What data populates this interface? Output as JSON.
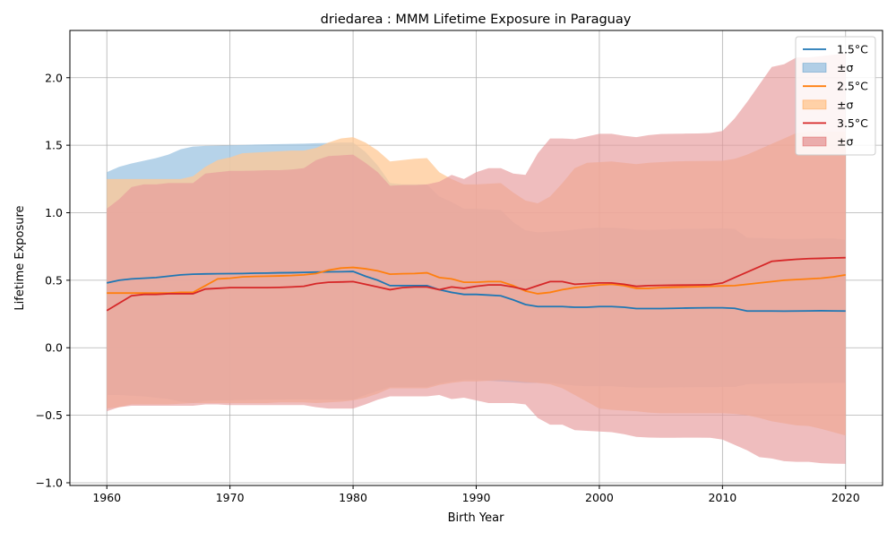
{
  "chart_data": {
    "type": "area",
    "title": "driedarea : MMM Lifetime Exposure in Paraguay",
    "xlabel": "Birth Year",
    "ylabel": "Lifetime Exposure",
    "xlim": [
      1957,
      2023
    ],
    "ylim": [
      -1.02,
      2.35
    ],
    "x_ticks": [
      1960,
      1970,
      1980,
      1990,
      2000,
      2010,
      2020
    ],
    "x_tick_labels": [
      "1960",
      "1970",
      "1980",
      "1990",
      "2000",
      "2010",
      "2020"
    ],
    "y_ticks": [
      -1.0,
      -0.5,
      0.0,
      0.5,
      1.0,
      1.5,
      2.0
    ],
    "y_tick_labels": [
      "−1.0",
      "−0.5",
      "0.0",
      "0.5",
      "1.0",
      "1.5",
      "2.0"
    ],
    "grid": true,
    "legend_position": "top-right",
    "legend_entries": [
      "1.5°C",
      "±σ",
      "2.5°C",
      "±σ",
      "3.5°C",
      "±σ"
    ],
    "x": [
      1960,
      1961,
      1962,
      1963,
      1964,
      1965,
      1966,
      1967,
      1968,
      1969,
      1970,
      1971,
      1972,
      1973,
      1974,
      1975,
      1976,
      1977,
      1978,
      1979,
      1980,
      1981,
      1982,
      1983,
      1984,
      1985,
      1986,
      1987,
      1988,
      1989,
      1990,
      1991,
      1992,
      1993,
      1994,
      1995,
      1996,
      1997,
      1998,
      1999,
      2000,
      2001,
      2002,
      2003,
      2004,
      2005,
      2006,
      2007,
      2008,
      2009,
      2010,
      2011,
      2012,
      2013,
      2014,
      2015,
      2016,
      2017,
      2018,
      2019,
      2020
    ],
    "series": [
      {
        "name": "1.5°C",
        "color": "#1f77b4",
        "band_color": "#9ec4e2",
        "mean": [
          0.48,
          0.5,
          0.51,
          0.515,
          0.52,
          0.53,
          0.54,
          0.545,
          0.547,
          0.548,
          0.549,
          0.55,
          0.552,
          0.553,
          0.555,
          0.556,
          0.558,
          0.56,
          0.562,
          0.563,
          0.565,
          0.53,
          0.5,
          0.46,
          0.46,
          0.46,
          0.46,
          0.43,
          0.41,
          0.395,
          0.395,
          0.39,
          0.385,
          0.355,
          0.32,
          0.305,
          0.305,
          0.305,
          0.3,
          0.3,
          0.305,
          0.305,
          0.3,
          0.29,
          0.29,
          0.29,
          0.292,
          0.294,
          0.295,
          0.296,
          0.296,
          0.292,
          0.272,
          0.272,
          0.272,
          0.271,
          0.272,
          0.273,
          0.274,
          0.273,
          0.272
        ],
        "upper": [
          1.3,
          1.34,
          1.365,
          1.385,
          1.405,
          1.43,
          1.47,
          1.49,
          1.495,
          1.497,
          1.499,
          1.502,
          1.505,
          1.507,
          1.508,
          1.51,
          1.512,
          1.515,
          1.517,
          1.52,
          1.52,
          1.45,
          1.35,
          1.22,
          1.21,
          1.21,
          1.21,
          1.12,
          1.08,
          1.03,
          1.03,
          1.025,
          1.02,
          0.93,
          0.87,
          0.855,
          0.86,
          0.865,
          0.875,
          0.885,
          0.89,
          0.89,
          0.885,
          0.875,
          0.873,
          0.875,
          0.878,
          0.88,
          0.88,
          0.882,
          0.884,
          0.88,
          0.815,
          0.812,
          0.81,
          0.805,
          0.806,
          0.808,
          0.81,
          0.81,
          0.8
        ],
        "lower": [
          -0.35,
          -0.35,
          -0.355,
          -0.36,
          -0.37,
          -0.38,
          -0.4,
          -0.41,
          -0.395,
          -0.39,
          -0.39,
          -0.388,
          -0.386,
          -0.385,
          -0.383,
          -0.382,
          -0.382,
          -0.383,
          -0.385,
          -0.386,
          -0.385,
          -0.35,
          -0.32,
          -0.29,
          -0.29,
          -0.29,
          -0.29,
          -0.265,
          -0.25,
          -0.24,
          -0.24,
          -0.245,
          -0.25,
          -0.255,
          -0.26,
          -0.26,
          -0.26,
          -0.27,
          -0.28,
          -0.285,
          -0.285,
          -0.285,
          -0.29,
          -0.295,
          -0.295,
          -0.295,
          -0.294,
          -0.293,
          -0.292,
          -0.291,
          -0.29,
          -0.29,
          -0.27,
          -0.268,
          -0.266,
          -0.265,
          -0.264,
          -0.263,
          -0.262,
          -0.261,
          -0.26
        ]
      },
      {
        "name": "2.5°C",
        "color": "#ff7f0e",
        "band_color": "#ffc894",
        "mean": [
          0.405,
          0.405,
          0.405,
          0.405,
          0.405,
          0.405,
          0.41,
          0.41,
          0.46,
          0.51,
          0.515,
          0.525,
          0.528,
          0.53,
          0.532,
          0.535,
          0.54,
          0.55,
          0.575,
          0.59,
          0.595,
          0.585,
          0.57,
          0.545,
          0.548,
          0.55,
          0.555,
          0.52,
          0.51,
          0.485,
          0.485,
          0.49,
          0.49,
          0.46,
          0.42,
          0.4,
          0.41,
          0.43,
          0.445,
          0.455,
          0.465,
          0.47,
          0.46,
          0.44,
          0.44,
          0.445,
          0.448,
          0.45,
          0.452,
          0.455,
          0.458,
          0.46,
          0.47,
          0.48,
          0.49,
          0.5,
          0.505,
          0.51,
          0.515,
          0.525,
          0.54
        ],
        "upper": [
          1.25,
          1.25,
          1.25,
          1.25,
          1.25,
          1.25,
          1.25,
          1.27,
          1.34,
          1.39,
          1.41,
          1.44,
          1.445,
          1.45,
          1.455,
          1.46,
          1.46,
          1.48,
          1.52,
          1.55,
          1.56,
          1.52,
          1.46,
          1.38,
          1.39,
          1.4,
          1.405,
          1.3,
          1.25,
          1.21,
          1.21,
          1.215,
          1.22,
          1.15,
          1.09,
          1.07,
          1.12,
          1.22,
          1.33,
          1.37,
          1.375,
          1.38,
          1.37,
          1.36,
          1.37,
          1.375,
          1.38,
          1.382,
          1.383,
          1.384,
          1.385,
          1.4,
          1.43,
          1.47,
          1.51,
          1.55,
          1.59,
          1.6,
          1.6,
          1.6,
          1.6
        ],
        "lower": [
          -0.45,
          -0.44,
          -0.42,
          -0.42,
          -0.42,
          -0.42,
          -0.415,
          -0.41,
          -0.41,
          -0.41,
          -0.41,
          -0.41,
          -0.41,
          -0.41,
          -0.405,
          -0.405,
          -0.405,
          -0.41,
          -0.405,
          -0.4,
          -0.39,
          -0.37,
          -0.34,
          -0.3,
          -0.3,
          -0.3,
          -0.3,
          -0.275,
          -0.26,
          -0.25,
          -0.25,
          -0.245,
          -0.24,
          -0.245,
          -0.255,
          -0.26,
          -0.27,
          -0.3,
          -0.35,
          -0.4,
          -0.45,
          -0.46,
          -0.465,
          -0.47,
          -0.48,
          -0.485,
          -0.485,
          -0.485,
          -0.485,
          -0.485,
          -0.485,
          -0.49,
          -0.5,
          -0.52,
          -0.545,
          -0.56,
          -0.575,
          -0.58,
          -0.6,
          -0.625,
          -0.65
        ]
      },
      {
        "name": "3.5°C",
        "color": "#d62728",
        "band_color": "#e69a9b",
        "mean": [
          0.275,
          0.33,
          0.385,
          0.395,
          0.395,
          0.4,
          0.4,
          0.4,
          0.435,
          0.44,
          0.445,
          0.445,
          0.445,
          0.445,
          0.447,
          0.45,
          0.455,
          0.475,
          0.485,
          0.487,
          0.49,
          0.47,
          0.45,
          0.43,
          0.445,
          0.45,
          0.45,
          0.43,
          0.45,
          0.44,
          0.455,
          0.465,
          0.465,
          0.45,
          0.43,
          0.46,
          0.49,
          0.49,
          0.47,
          0.475,
          0.48,
          0.48,
          0.47,
          0.455,
          0.46,
          0.462,
          0.463,
          0.464,
          0.465,
          0.467,
          0.48,
          0.52,
          0.56,
          0.6,
          0.64,
          0.648,
          0.655,
          0.66,
          0.662,
          0.665,
          0.667
        ],
        "upper": [
          1.03,
          1.1,
          1.19,
          1.21,
          1.21,
          1.22,
          1.22,
          1.22,
          1.29,
          1.3,
          1.31,
          1.31,
          1.312,
          1.315,
          1.315,
          1.32,
          1.33,
          1.39,
          1.42,
          1.425,
          1.43,
          1.37,
          1.3,
          1.2,
          1.205,
          1.205,
          1.21,
          1.23,
          1.28,
          1.25,
          1.3,
          1.33,
          1.33,
          1.29,
          1.28,
          1.44,
          1.55,
          1.55,
          1.545,
          1.565,
          1.585,
          1.585,
          1.57,
          1.56,
          1.575,
          1.583,
          1.585,
          1.586,
          1.587,
          1.59,
          1.605,
          1.7,
          1.82,
          1.95,
          2.08,
          2.1,
          2.15,
          2.15,
          2.16,
          2.17,
          2.18
        ],
        "lower": [
          -0.47,
          -0.44,
          -0.43,
          -0.43,
          -0.43,
          -0.43,
          -0.43,
          -0.43,
          -0.42,
          -0.42,
          -0.425,
          -0.425,
          -0.425,
          -0.425,
          -0.425,
          -0.425,
          -0.425,
          -0.44,
          -0.45,
          -0.45,
          -0.45,
          -0.42,
          -0.385,
          -0.36,
          -0.36,
          -0.36,
          -0.36,
          -0.35,
          -0.38,
          -0.37,
          -0.39,
          -0.41,
          -0.41,
          -0.41,
          -0.42,
          -0.52,
          -0.57,
          -0.57,
          -0.61,
          -0.615,
          -0.62,
          -0.625,
          -0.64,
          -0.66,
          -0.665,
          -0.667,
          -0.667,
          -0.666,
          -0.666,
          -0.667,
          -0.68,
          -0.72,
          -0.76,
          -0.81,
          -0.82,
          -0.84,
          -0.845,
          -0.845,
          -0.855,
          -0.858,
          -0.86
        ]
      }
    ]
  }
}
